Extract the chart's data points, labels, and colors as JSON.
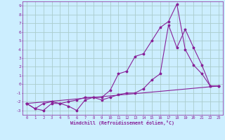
{
  "xlabel": "Windchill (Refroidissement éolien,°C)",
  "bg_color": "#cceeff",
  "grid_color": "#aacccc",
  "line_color": "#882299",
  "xlim": [
    -0.5,
    23.5
  ],
  "ylim": [
    -3.5,
    9.5
  ],
  "xticks": [
    0,
    1,
    2,
    3,
    4,
    5,
    6,
    7,
    8,
    9,
    10,
    11,
    12,
    13,
    14,
    15,
    16,
    17,
    18,
    19,
    20,
    21,
    22,
    23
  ],
  "yticks": [
    -3,
    -2,
    -1,
    0,
    1,
    2,
    3,
    4,
    5,
    6,
    7,
    8,
    9
  ],
  "line1_x": [
    0,
    1,
    2,
    3,
    4,
    5,
    6,
    7,
    8,
    9,
    10,
    11,
    12,
    13,
    14,
    15,
    16,
    17,
    18,
    19,
    20,
    21,
    22,
    23
  ],
  "line1_y": [
    -2.2,
    -2.8,
    -3.0,
    -2.2,
    -2.2,
    -2.5,
    -3.0,
    -1.8,
    -1.5,
    -1.5,
    -0.7,
    1.2,
    1.5,
    3.2,
    3.5,
    5.0,
    6.5,
    7.2,
    9.2,
    4.0,
    2.2,
    1.2,
    -0.2,
    -0.2
  ],
  "line2_x": [
    0,
    1,
    2,
    3,
    4,
    5,
    6,
    7,
    8,
    9,
    10,
    11,
    12,
    13,
    14,
    15,
    16,
    17,
    18,
    19,
    20,
    21,
    22,
    23
  ],
  "line2_y": [
    -2.2,
    -2.8,
    -2.2,
    -2.0,
    -2.2,
    -2.0,
    -1.8,
    -1.5,
    -1.5,
    -1.8,
    -1.5,
    -1.2,
    -1.0,
    -1.0,
    -0.5,
    0.5,
    1.2,
    6.8,
    4.2,
    6.3,
    4.2,
    2.2,
    -0.2,
    -0.2
  ],
  "line3_x": [
    0,
    23
  ],
  "line3_y": [
    -2.2,
    -0.2
  ]
}
